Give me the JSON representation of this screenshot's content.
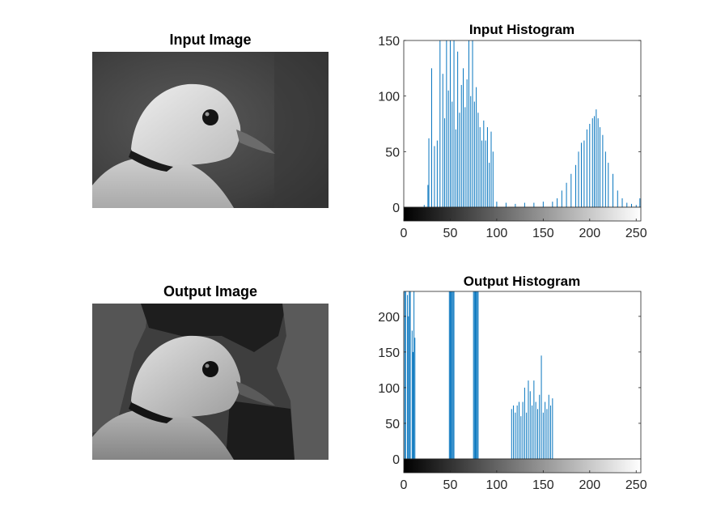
{
  "panels": {
    "input_image": {
      "title": "Input Image"
    },
    "output_image": {
      "title": "Output Image"
    },
    "input_hist": {
      "title": "Input Histogram"
    },
    "output_hist": {
      "title": "Output Histogram"
    }
  },
  "colors": {
    "bar": "#0072BD",
    "axis": "#262626",
    "background": "#ffffff"
  },
  "chart_data": [
    {
      "type": "bar",
      "title": "Input Histogram",
      "xlim": [
        0,
        255
      ],
      "ylim": [
        0,
        150
      ],
      "xticks": [
        0,
        50,
        100,
        150,
        200,
        250
      ],
      "yticks": [
        0,
        50,
        100,
        150
      ],
      "colorbar": "grayscale",
      "series": [
        {
          "x": [
            22,
            26,
            27,
            30,
            33,
            36,
            39,
            42,
            44,
            46,
            48,
            50,
            52,
            54,
            56,
            58,
            60,
            62,
            64,
            66,
            68,
            70,
            72,
            74,
            76,
            78,
            80,
            82,
            84,
            86,
            88,
            90,
            92,
            94,
            96,
            100,
            110,
            120,
            130,
            140,
            150,
            160,
            165,
            170,
            175,
            180,
            185,
            188,
            191,
            194,
            197,
            200,
            203,
            205,
            207,
            209,
            211,
            214,
            217,
            220,
            225,
            230,
            235,
            240,
            245,
            250,
            254
          ],
          "values": [
            2,
            20,
            62,
            125,
            55,
            60,
            150,
            120,
            80,
            150,
            105,
            150,
            95,
            150,
            70,
            140,
            85,
            110,
            125,
            90,
            115,
            150,
            100,
            150,
            95,
            108,
            85,
            72,
            60,
            78,
            60,
            72,
            40,
            68,
            50,
            5,
            4,
            3,
            4,
            4,
            5,
            5,
            8,
            15,
            22,
            30,
            38,
            50,
            58,
            60,
            70,
            75,
            80,
            82,
            88,
            80,
            72,
            65,
            50,
            40,
            30,
            15,
            8,
            4,
            3,
            2,
            8
          ]
        }
      ]
    },
    {
      "type": "bar",
      "title": "Output Histogram",
      "xlim": [
        0,
        255
      ],
      "ylim": [
        0,
        235
      ],
      "xticks": [
        0,
        50,
        100,
        150,
        200,
        250
      ],
      "yticks": [
        0,
        50,
        100,
        150,
        200
      ],
      "colorbar": "grayscale",
      "series": [
        {
          "x": [
            1,
            2,
            4,
            5,
            6,
            7,
            9,
            10,
            11,
            12,
            49,
            50,
            51,
            52,
            53,
            54,
            75,
            76,
            77,
            78,
            79,
            80,
            116,
            118,
            120,
            122,
            124,
            126,
            128,
            130,
            132,
            134,
            136,
            138,
            140,
            142,
            144,
            146,
            148,
            150,
            152,
            154,
            156,
            158,
            160
          ],
          "values": [
            235,
            235,
            230,
            200,
            235,
            235,
            180,
            150,
            235,
            170,
            235,
            235,
            235,
            235,
            235,
            235,
            235,
            235,
            235,
            235,
            235,
            235,
            70,
            75,
            65,
            75,
            80,
            60,
            80,
            100,
            65,
            110,
            95,
            75,
            110,
            80,
            70,
            90,
            145,
            65,
            80,
            70,
            90,
            75,
            85
          ]
        }
      ]
    }
  ]
}
